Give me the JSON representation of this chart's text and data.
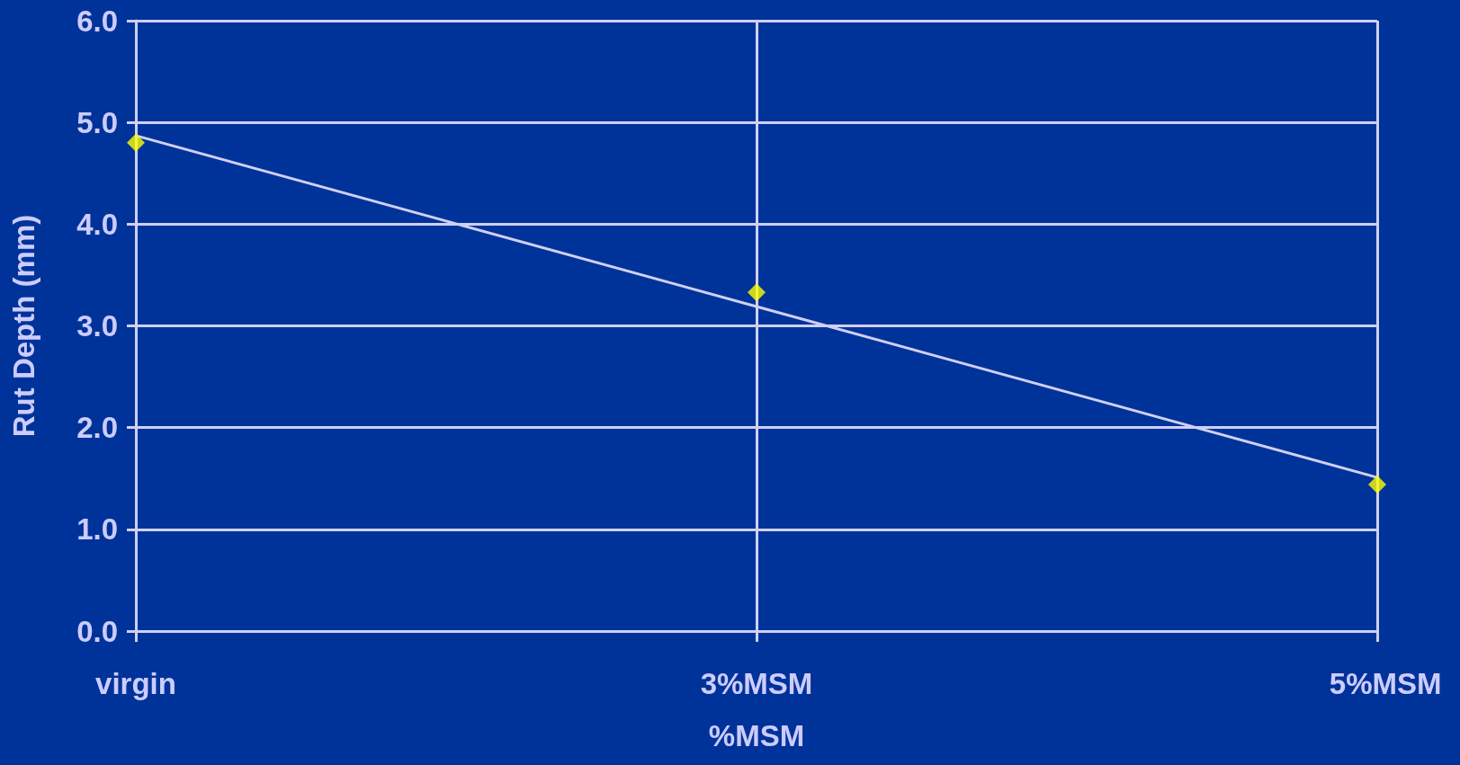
{
  "chart_data": {
    "type": "scatter",
    "xlabel": "%MSM",
    "ylabel": "Rut Depth (mm)",
    "categories": [
      "virgin",
      "3%MSM",
      "5%MSM"
    ],
    "series": [
      {
        "color": "#ffff00",
        "marker": "diamond",
        "values": [
          4.8,
          3.33,
          1.44
        ]
      },
      {
        "type": "line",
        "color": "#d0d0f4",
        "marker": "none",
        "x": [
          "virgin",
          "3%MSM",
          "5%MSM"
        ],
        "values": [
          4.87,
          3.19,
          1.51
        ]
      }
    ],
    "ylim": [
      0,
      6
    ],
    "yticks": [
      {
        "value": 0,
        "label": "0.0"
      },
      {
        "value": 1,
        "label": "1.0"
      },
      {
        "value": 2,
        "label": "2.0"
      },
      {
        "value": 3,
        "label": "3.0"
      },
      {
        "value": 4,
        "label": "4.0"
      },
      {
        "value": 5,
        "label": "5.0"
      },
      {
        "value": 6,
        "label": "6.0"
      }
    ],
    "grid": true
  }
}
